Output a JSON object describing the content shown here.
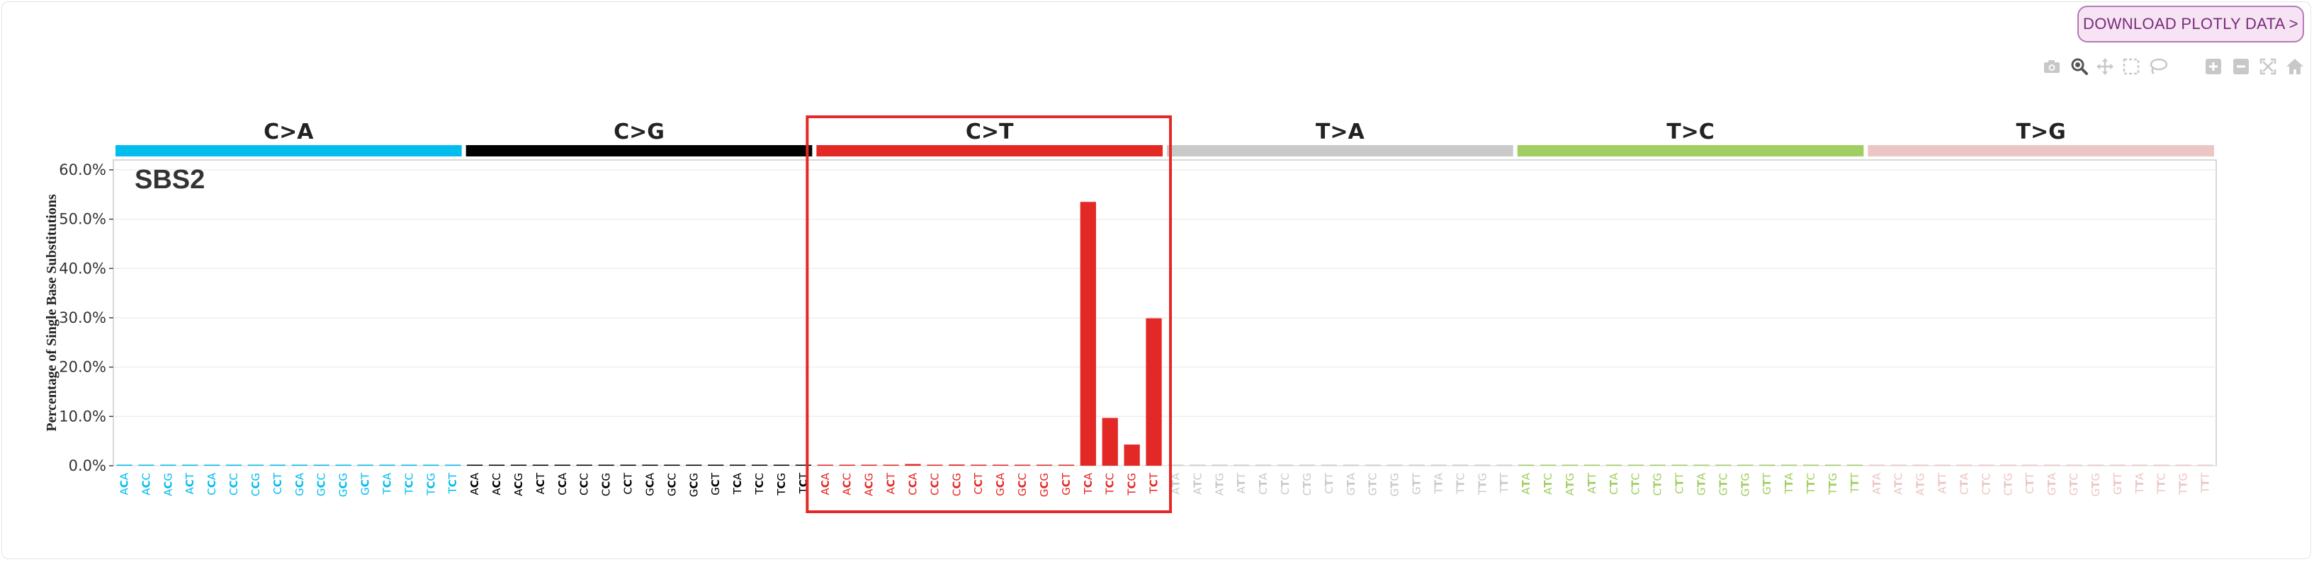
{
  "toolbar": {
    "download_label": "DOWNLOAD PLOTLY DATA >"
  },
  "modebar": {
    "icons": [
      "camera-icon",
      "zoom-icon",
      "pan-icon",
      "box-select-icon",
      "lasso-select-icon",
      "zoom-in-icon",
      "zoom-out-icon",
      "autoscale-icon",
      "reset-axes-icon"
    ]
  },
  "colors": {
    "C>A": "#03bcee",
    "C>G": "#010101",
    "C>T": "#e32926",
    "T>A": "#cac9c9",
    "T>C": "#a1ce63",
    "T>G": "#ebc6c4",
    "highlight": "#e32926",
    "grid": "#eeeeee",
    "axis": "#cccccc"
  },
  "chart_data": {
    "type": "bar",
    "signature": "SBS2",
    "ylabel": "Percentage of Single Base Substitutions",
    "ylim": [
      0,
      0.62
    ],
    "yticks": [
      0,
      0.1,
      0.2,
      0.3,
      0.4,
      0.5,
      0.6
    ],
    "ytick_labels": [
      "0.0%",
      "10.0%",
      "20.0%",
      "30.0%",
      "40.0%",
      "50.0%",
      "60.0%"
    ],
    "highlighted_group": "C>T",
    "groups": [
      {
        "name": "C>A",
        "contexts": [
          "ACA",
          "ACC",
          "ACG",
          "ACT",
          "CCA",
          "CCC",
          "CCG",
          "CCT",
          "GCA",
          "GCC",
          "GCG",
          "GCT",
          "TCA",
          "TCC",
          "TCG",
          "TCT"
        ],
        "values": [
          0.0002,
          0.0003,
          0.0001,
          0.0002,
          0.0004,
          0.0002,
          0.0001,
          0.0003,
          0.0002,
          0.0002,
          0.0001,
          0.0002,
          0.0002,
          0.0003,
          0.0001,
          0.0003
        ]
      },
      {
        "name": "C>G",
        "contexts": [
          "ACA",
          "ACC",
          "ACG",
          "ACT",
          "CCA",
          "CCC",
          "CCG",
          "CCT",
          "GCA",
          "GCC",
          "GCG",
          "GCT",
          "TCA",
          "TCC",
          "TCG",
          "TCT"
        ],
        "values": [
          0.001,
          0.0018,
          0.0003,
          0.0015,
          0.001,
          0.0012,
          0.0003,
          0.0014,
          0.0011,
          0.0012,
          0.0003,
          0.001,
          0.0016,
          0.0011,
          0.0008,
          0.0017
        ]
      },
      {
        "name": "C>T",
        "contexts": [
          "ACA",
          "ACC",
          "ACG",
          "ACT",
          "CCA",
          "CCC",
          "CCG",
          "CCT",
          "GCA",
          "GCC",
          "GCG",
          "GCT",
          "TCA",
          "TCC",
          "TCG",
          "TCT"
        ],
        "values": [
          0.0006,
          0.0004,
          0.002,
          0.001,
          0.0035,
          0.001,
          0.0025,
          0.001,
          0.0005,
          0.0004,
          0.0008,
          0.0012,
          0.535,
          0.097,
          0.043,
          0.299
        ]
      },
      {
        "name": "T>A",
        "contexts": [
          "ATA",
          "ATC",
          "ATG",
          "ATT",
          "CTA",
          "CTC",
          "CTG",
          "CTT",
          "GTA",
          "GTC",
          "GTG",
          "GTT",
          "TTA",
          "TTC",
          "TTG",
          "TTT"
        ],
        "values": [
          0.0004,
          0.0006,
          0.0005,
          0.0009,
          0.0004,
          0.0005,
          0.0006,
          0.0007,
          0.0004,
          0.0003,
          0.0005,
          0.0006,
          0.0004,
          0.0004,
          0.0004,
          0.0007
        ]
      },
      {
        "name": "T>C",
        "contexts": [
          "ATA",
          "ATC",
          "ATG",
          "ATT",
          "CTA",
          "CTC",
          "CTG",
          "CTT",
          "GTA",
          "GTC",
          "GTG",
          "GTT",
          "TTA",
          "TTC",
          "TTG",
          "TTT"
        ],
        "values": [
          0.0007,
          0.0005,
          0.0008,
          0.0006,
          0.0005,
          0.0006,
          0.0006,
          0.0006,
          0.0005,
          0.0004,
          0.0006,
          0.0005,
          0.0005,
          0.0006,
          0.0005,
          0.0008
        ]
      },
      {
        "name": "T>G",
        "contexts": [
          "ATA",
          "ATC",
          "ATG",
          "ATT",
          "CTA",
          "CTC",
          "CTG",
          "CTT",
          "GTA",
          "GTC",
          "GTG",
          "GTT",
          "TTA",
          "TTC",
          "TTG",
          "TTT"
        ],
        "values": [
          0.0002,
          0.0003,
          0.0002,
          0.0004,
          0.0002,
          0.0002,
          0.0003,
          0.0004,
          0.0002,
          0.0002,
          0.0002,
          0.0003,
          0.0003,
          0.0003,
          0.0002,
          0.0004
        ]
      }
    ]
  }
}
